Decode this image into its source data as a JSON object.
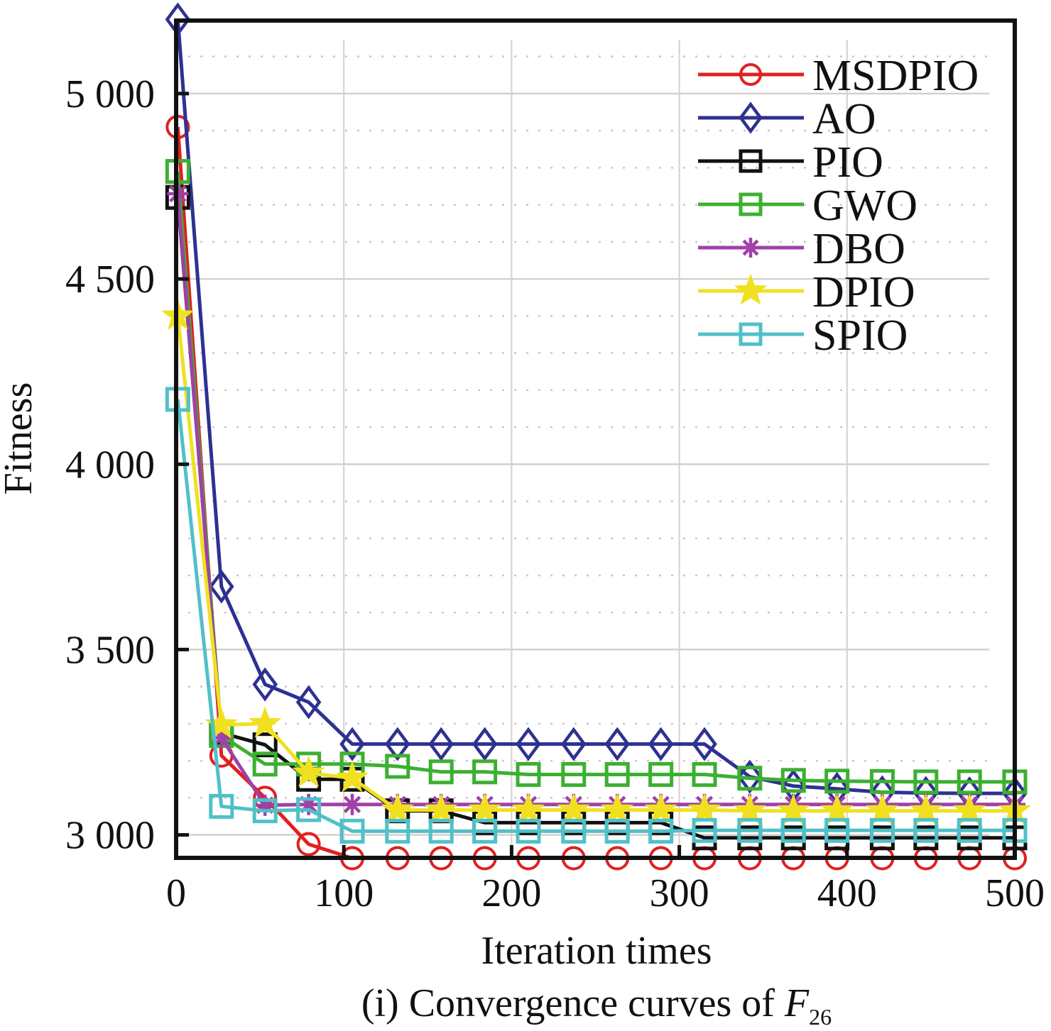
{
  "chart_data": {
    "type": "line",
    "title": "",
    "caption": {
      "prefix": "(i) Convergence curves of ",
      "function_symbol": "F",
      "function_subscript": "26"
    },
    "xlabel": "Iteration times",
    "ylabel": "Fitness",
    "xlim": [
      0,
      500
    ],
    "ylim": [
      2938,
      5197
    ],
    "xticks": [
      0,
      100,
      200,
      300,
      400,
      500
    ],
    "xtick_labels": [
      "0",
      "100",
      "200",
      "300",
      "400",
      "500"
    ],
    "yticks": [
      3000,
      3500,
      4000,
      4500,
      5000
    ],
    "ytick_labels": [
      "3 000",
      "3 500",
      "4 000",
      "4 500",
      "5 000"
    ],
    "minor_ygrid_step": 100,
    "grid": true,
    "legend_position": "top-right",
    "x": [
      1,
      27,
      53,
      79,
      105,
      132,
      158,
      184,
      210,
      237,
      263,
      289,
      315,
      342,
      368,
      394,
      421,
      447,
      473,
      500
    ],
    "series": [
      {
        "name": "MSDPIO",
        "color": "#e02020",
        "marker": "circle",
        "values": [
          4910,
          3214,
          3100,
          2975,
          2937,
          2937,
          2937,
          2937,
          2937,
          2937,
          2937,
          2937,
          2937,
          2937,
          2937,
          2937,
          2937,
          2937,
          2937,
          2937
        ]
      },
      {
        "name": "AO",
        "color": "#2e3192",
        "marker": "diamond",
        "values": [
          5200,
          3670,
          3406,
          3358,
          3245,
          3245,
          3245,
          3245,
          3245,
          3245,
          3245,
          3245,
          3245,
          3157,
          3132,
          3124,
          3115,
          3113,
          3112,
          3112
        ]
      },
      {
        "name": "PIO",
        "color": "#111111",
        "marker": "square",
        "values": [
          4720,
          3275,
          3243,
          3150,
          3150,
          3065,
          3065,
          3033,
          3033,
          3033,
          3033,
          3033,
          2992,
          2992,
          2992,
          2992,
          2992,
          2992,
          2992,
          2992
        ]
      },
      {
        "name": "GWO",
        "color": "#3cb030",
        "marker": "square",
        "values": [
          4790,
          3268,
          3191,
          3191,
          3191,
          3185,
          3170,
          3170,
          3163,
          3163,
          3163,
          3163,
          3163,
          3153,
          3147,
          3145,
          3144,
          3143,
          3143,
          3143
        ]
      },
      {
        "name": "DBO",
        "color": "#a040a8",
        "marker": "asterisk",
        "values": [
          4730,
          3262,
          3080,
          3082,
          3082,
          3082,
          3082,
          3082,
          3082,
          3082,
          3082,
          3082,
          3082,
          3082,
          3082,
          3082,
          3082,
          3082,
          3082,
          3082
        ]
      },
      {
        "name": "DPIO",
        "color": "#f0e020",
        "marker": "star",
        "values": [
          4400,
          3297,
          3300,
          3167,
          3153,
          3067,
          3067,
          3067,
          3067,
          3067,
          3067,
          3067,
          3067,
          3065,
          3065,
          3065,
          3065,
          3065,
          3065,
          3065
        ]
      },
      {
        "name": "SPIO",
        "color": "#50c0c8",
        "marker": "square",
        "values": [
          4175,
          3077,
          3065,
          3068,
          3010,
          3010,
          3010,
          3010,
          3010,
          3010,
          3010,
          3010,
          3012,
          3012,
          3012,
          3012,
          3012,
          3012,
          3012,
          3012
        ]
      }
    ]
  }
}
